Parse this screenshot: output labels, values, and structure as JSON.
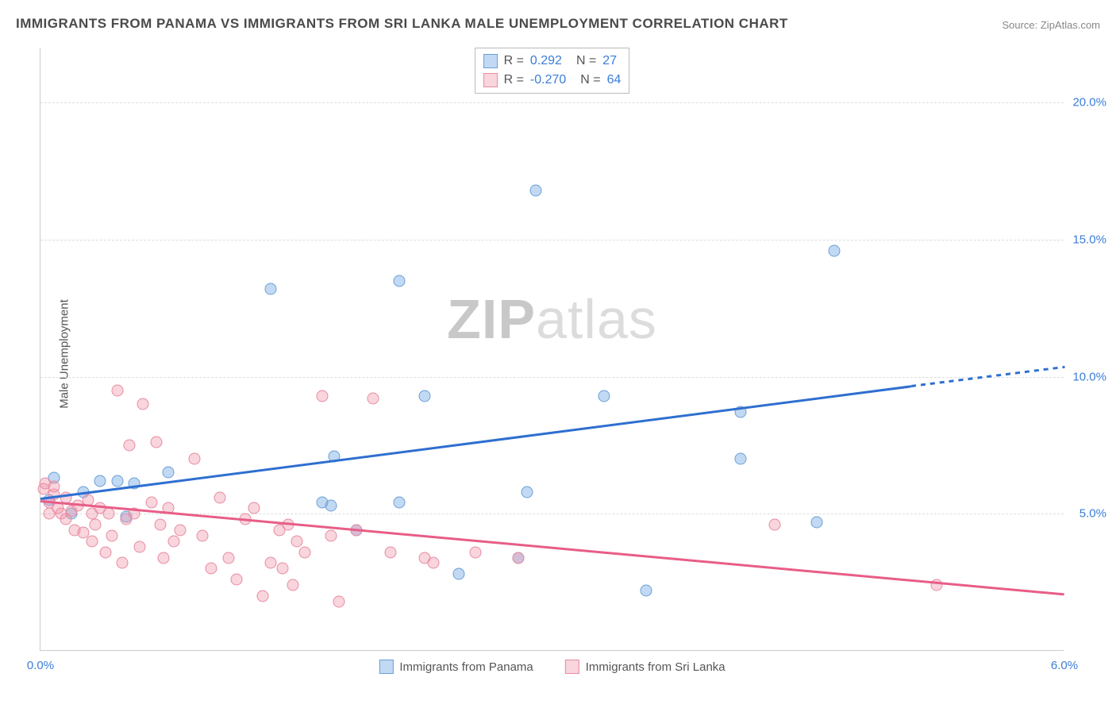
{
  "title": "IMMIGRANTS FROM PANAMA VS IMMIGRANTS FROM SRI LANKA MALE UNEMPLOYMENT CORRELATION CHART",
  "source": "Source: ZipAtlas.com",
  "ylabel": "Male Unemployment",
  "watermark": "ZIPatlas",
  "chart": {
    "type": "scatter",
    "xlim": [
      0.0,
      6.0
    ],
    "ylim": [
      0.0,
      22.0
    ],
    "xtick_labels": [
      {
        "val": 0.0,
        "label": "0.0%"
      },
      {
        "val": 6.0,
        "label": "6.0%"
      }
    ],
    "ytick_labels": [
      {
        "val": 5.0,
        "label": "5.0%"
      },
      {
        "val": 10.0,
        "label": "10.0%"
      },
      {
        "val": 15.0,
        "label": "15.0%"
      },
      {
        "val": 20.0,
        "label": "20.0%"
      }
    ],
    "grid_color": "#dddddd",
    "background_color": "#ffffff",
    "marker_radius": 7.5,
    "series": [
      {
        "name": "Immigrants from Panama",
        "color_fill": "rgba(120,170,230,0.45)",
        "color_border": "#6a9fd4",
        "trend_color": "#2e6fd0",
        "R": "0.292",
        "N": "27",
        "trend": {
          "x1": 0.0,
          "y1": 5.6,
          "x2": 5.1,
          "y2": 9.7,
          "x2_dash": 6.0,
          "y2_dash": 10.4
        },
        "points": [
          [
            0.08,
            6.3
          ],
          [
            0.05,
            5.5
          ],
          [
            0.18,
            5.0
          ],
          [
            0.55,
            6.1
          ],
          [
            0.45,
            6.2
          ],
          [
            0.75,
            6.5
          ],
          [
            1.35,
            13.2
          ],
          [
            1.65,
            5.4
          ],
          [
            1.7,
            5.3
          ],
          [
            1.72,
            7.1
          ],
          [
            2.1,
            13.5
          ],
          [
            2.25,
            9.3
          ],
          [
            1.85,
            4.4
          ],
          [
            2.1,
            5.4
          ],
          [
            2.45,
            2.8
          ],
          [
            2.8,
            3.4
          ],
          [
            2.9,
            16.8
          ],
          [
            3.3,
            9.3
          ],
          [
            2.85,
            5.8
          ],
          [
            3.55,
            2.2
          ],
          [
            4.1,
            7.0
          ],
          [
            4.1,
            8.7
          ],
          [
            4.65,
            14.6
          ],
          [
            4.55,
            4.7
          ],
          [
            0.35,
            6.2
          ],
          [
            0.5,
            4.9
          ],
          [
            0.25,
            5.8
          ]
        ]
      },
      {
        "name": "Immigrants from Sri Lanka",
        "color_fill": "rgba(240,150,170,0.4)",
        "color_border": "#e88ba0",
        "trend_color": "#e85d87",
        "R": "-0.270",
        "N": "64",
        "trend": {
          "x1": 0.0,
          "y1": 5.5,
          "x2": 6.0,
          "y2": 2.1
        },
        "points": [
          [
            0.02,
            5.9
          ],
          [
            0.03,
            6.1
          ],
          [
            0.05,
            5.4
          ],
          [
            0.05,
            5.0
          ],
          [
            0.08,
            5.7
          ],
          [
            0.08,
            6.0
          ],
          [
            0.1,
            5.2
          ],
          [
            0.12,
            5.0
          ],
          [
            0.15,
            5.6
          ],
          [
            0.15,
            4.8
          ],
          [
            0.18,
            5.1
          ],
          [
            0.2,
            4.4
          ],
          [
            0.22,
            5.3
          ],
          [
            0.25,
            4.3
          ],
          [
            0.28,
            5.5
          ],
          [
            0.3,
            4.0
          ],
          [
            0.3,
            5.0
          ],
          [
            0.32,
            4.6
          ],
          [
            0.35,
            5.2
          ],
          [
            0.38,
            3.6
          ],
          [
            0.4,
            5.0
          ],
          [
            0.42,
            4.2
          ],
          [
            0.45,
            9.5
          ],
          [
            0.48,
            3.2
          ],
          [
            0.5,
            4.8
          ],
          [
            0.52,
            7.5
          ],
          [
            0.55,
            5.0
          ],
          [
            0.58,
            3.8
          ],
          [
            0.6,
            9.0
          ],
          [
            0.65,
            5.4
          ],
          [
            0.68,
            7.6
          ],
          [
            0.7,
            4.6
          ],
          [
            0.72,
            3.4
          ],
          [
            0.75,
            5.2
          ],
          [
            0.78,
            4.0
          ],
          [
            0.82,
            4.4
          ],
          [
            0.9,
            7.0
          ],
          [
            0.95,
            4.2
          ],
          [
            1.0,
            3.0
          ],
          [
            1.05,
            5.6
          ],
          [
            1.1,
            3.4
          ],
          [
            1.15,
            2.6
          ],
          [
            1.2,
            4.8
          ],
          [
            1.25,
            5.2
          ],
          [
            1.3,
            2.0
          ],
          [
            1.35,
            3.2
          ],
          [
            1.4,
            4.4
          ],
          [
            1.42,
            3.0
          ],
          [
            1.45,
            4.6
          ],
          [
            1.48,
            2.4
          ],
          [
            1.55,
            3.6
          ],
          [
            1.65,
            9.3
          ],
          [
            1.7,
            4.2
          ],
          [
            1.75,
            1.8
          ],
          [
            1.85,
            4.4
          ],
          [
            1.95,
            9.2
          ],
          [
            2.05,
            3.6
          ],
          [
            2.25,
            3.4
          ],
          [
            2.3,
            3.2
          ],
          [
            2.55,
            3.6
          ],
          [
            2.8,
            3.4
          ],
          [
            4.3,
            4.6
          ],
          [
            5.25,
            2.4
          ],
          [
            1.5,
            4.0
          ]
        ]
      }
    ]
  },
  "legend_bottom": [
    {
      "swatch": "blue",
      "label": "Immigrants from Panama"
    },
    {
      "swatch": "pink",
      "label": "Immigrants from Sri Lanka"
    }
  ]
}
